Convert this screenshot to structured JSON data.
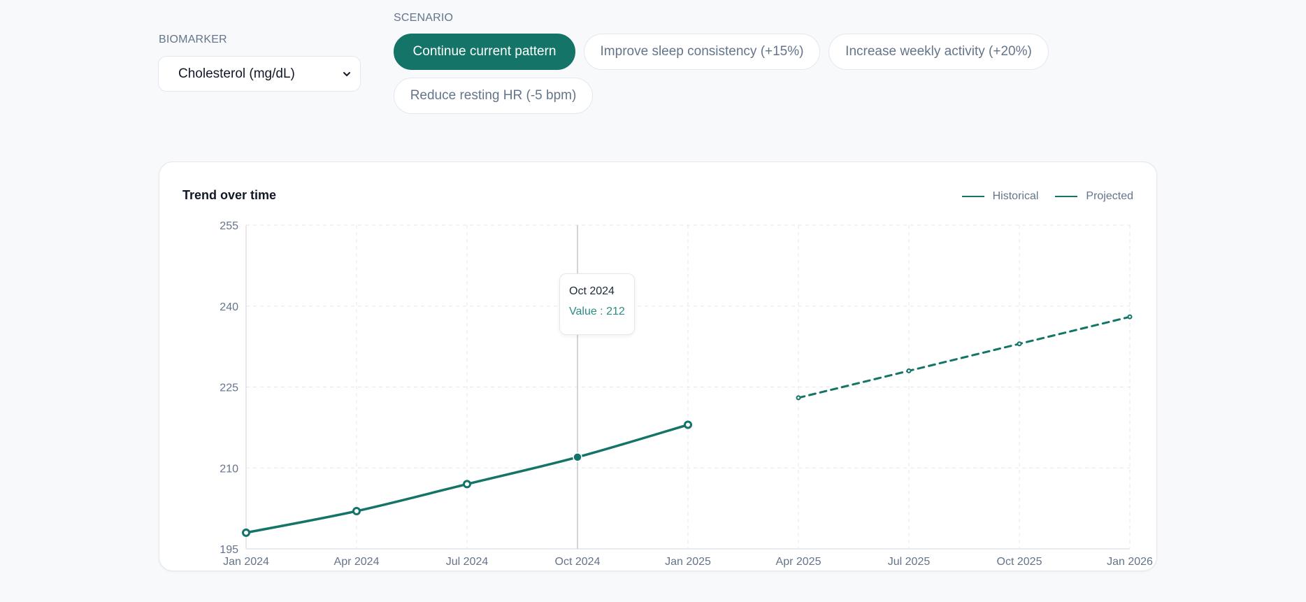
{
  "controls": {
    "biomarker_label": "BIOMARKER",
    "biomarker_value": "Cholesterol (mg/dL)",
    "scenario_label": "SCENARIO",
    "scenarios": [
      "Continue current pattern",
      "Improve sleep consistency (+15%)",
      "Increase weekly activity (+20%)",
      "Reduce resting HR (-5 bpm)"
    ],
    "active_scenario": "Continue current pattern"
  },
  "card": {
    "title": "Trend over time",
    "legend": [
      "Historical",
      "Projected"
    ]
  },
  "tooltip": {
    "title": "Oct 2024",
    "value_text": "Value : 212"
  },
  "colors": {
    "accent": "#137467",
    "tooltip_value": "#2d8c81",
    "grid": "#e5e7eb",
    "axis_text": "#64748b"
  },
  "chart_data": {
    "type": "line",
    "x": [
      "Jan 2024",
      "Apr 2024",
      "Jul 2024",
      "Oct 2024",
      "Jan 2025",
      "Apr 2025",
      "Jul 2025",
      "Oct 2025",
      "Jan 2026"
    ],
    "yticks": [
      195,
      210,
      225,
      240,
      255
    ],
    "ylim": [
      195,
      255
    ],
    "grid": true,
    "legend_position": "top-right",
    "series": [
      {
        "name": "Historical",
        "style": "solid",
        "x": [
          "Jan 2024",
          "Apr 2024",
          "Jul 2024",
          "Oct 2024",
          "Jan 2025"
        ],
        "values": [
          198,
          202,
          207,
          212,
          218
        ]
      },
      {
        "name": "Projected",
        "style": "dashed",
        "x": [
          "Apr 2025",
          "Jul 2025",
          "Oct 2025",
          "Jan 2026"
        ],
        "values": [
          223,
          228,
          233,
          238
        ]
      }
    ],
    "highlight": {
      "x": "Oct 2024",
      "value": 212
    }
  }
}
